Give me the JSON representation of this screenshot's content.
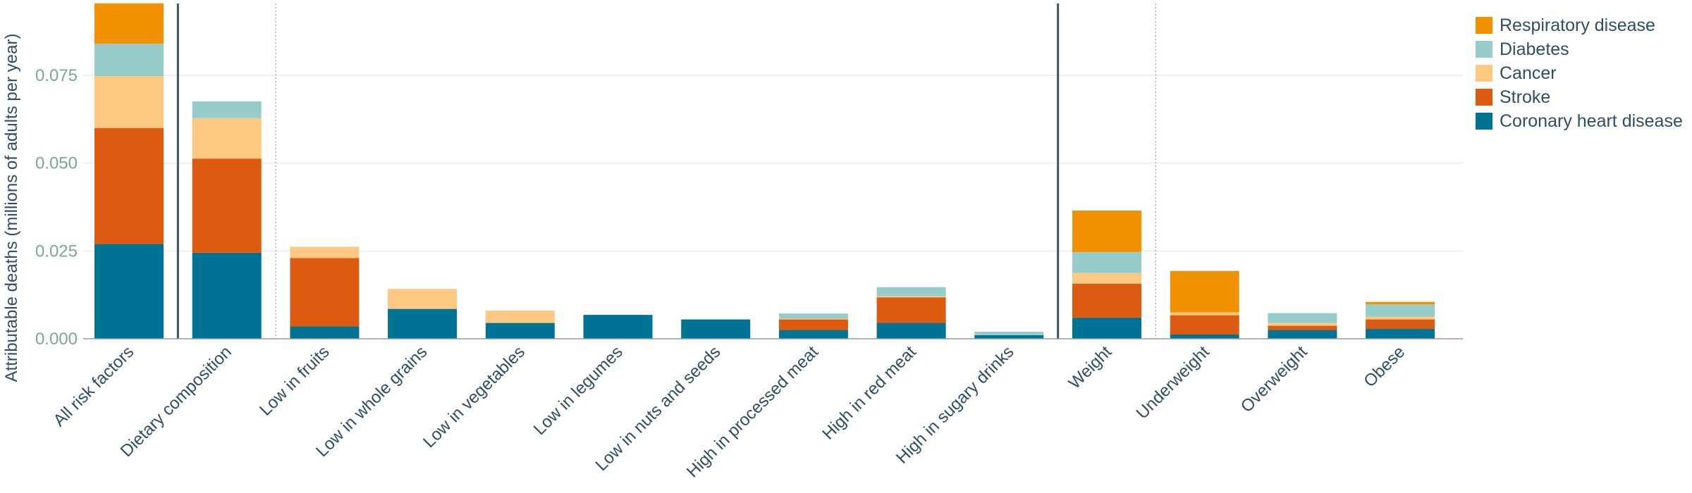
{
  "chart_data": {
    "type": "bar",
    "stacked": true,
    "ylabel": "Attributable deaths (millions of adults per year)",
    "xlabel": "",
    "ylim": [
      0,
      0.095
    ],
    "yticks": [
      "0.000",
      "0.025",
      "0.050",
      "0.075"
    ],
    "ytick_values": [
      0,
      0.025,
      0.05,
      0.075
    ],
    "grid": true,
    "legend_position": "right",
    "categories": [
      "All risk factors",
      "Dietary composition",
      "Low in fruits",
      "Low in whole grains",
      "Low in vegetables",
      "Low in legumes",
      "Low in nuts and seeds",
      "High in processed meat",
      "High in red meat",
      "High in sugary drinks",
      "Weight",
      "Underweight",
      "Overweight",
      "Obese"
    ],
    "series": [
      {
        "name": "Coronary heart disease",
        "color": "#007394",
        "values": [
          0.027,
          0.0245,
          0.0035,
          0.0085,
          0.0045,
          0.0068,
          0.0055,
          0.0025,
          0.0045,
          0.001,
          0.006,
          0.0012,
          0.0025,
          0.0028
        ]
      },
      {
        "name": "Stroke",
        "color": "#dd5b10",
        "values": [
          0.033,
          0.0268,
          0.0195,
          0.0,
          0.0,
          0.0,
          0.0,
          0.003,
          0.0073,
          0.0,
          0.0097,
          0.0055,
          0.0012,
          0.0027
        ]
      },
      {
        "name": "Cancer",
        "color": "#fdc982",
        "values": [
          0.0148,
          0.0115,
          0.0032,
          0.0057,
          0.0035,
          0.0,
          0.0,
          0.0002,
          0.0003,
          0.0,
          0.003,
          0.0008,
          0.0008,
          0.0008
        ]
      },
      {
        "name": "Diabetes",
        "color": "#96cdcb",
        "values": [
          0.0092,
          0.0048,
          0.0,
          0.0,
          0.0,
          0.0,
          0.0,
          0.0015,
          0.0026,
          0.001,
          0.006,
          0.0,
          0.0028,
          0.0035
        ]
      },
      {
        "name": "Respiratory disease",
        "color": "#f29100",
        "values": [
          0.0115,
          0.0,
          0.0,
          0.0,
          0.0,
          0.0,
          0.0,
          0.0,
          0.0,
          0.0,
          0.0118,
          0.0118,
          0.0,
          0.0007
        ]
      }
    ],
    "legend_order": [
      "Respiratory disease",
      "Diabetes",
      "Cancer",
      "Stroke",
      "Coronary heart disease"
    ],
    "separators": [
      {
        "after_category": 0,
        "style": "solid"
      },
      {
        "after_category": 1,
        "style": "dotted"
      },
      {
        "after_category": 9,
        "style": "solid"
      },
      {
        "after_category": 10,
        "style": "dotted"
      }
    ]
  }
}
